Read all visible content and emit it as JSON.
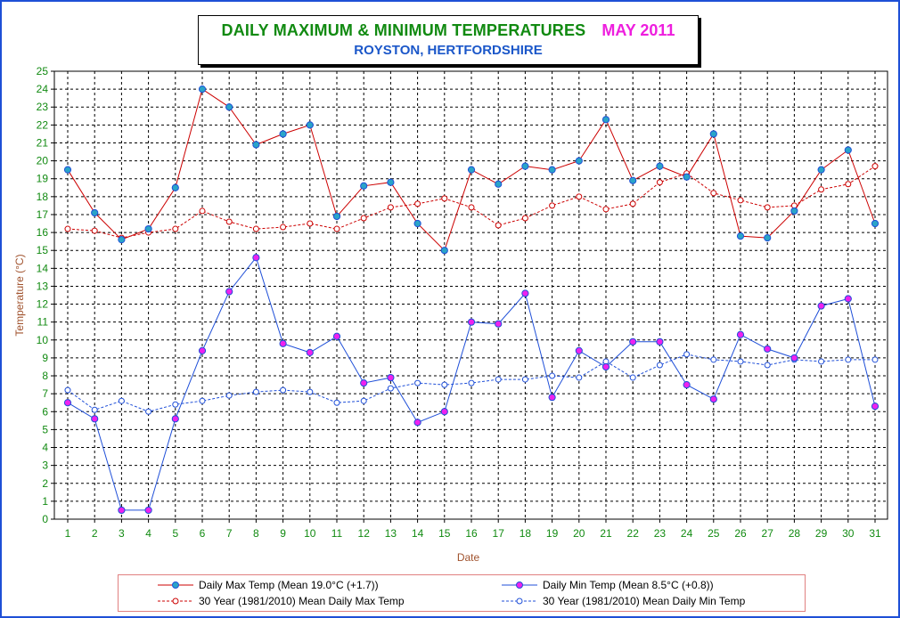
{
  "title": {
    "main": "DAILY MAXIMUM &  MINIMUM  TEMPERATURES",
    "month": "MAY 2011",
    "subtitle": "ROYSTON, HERTFORDSHIRE"
  },
  "colors": {
    "frame": "#1e4fd6",
    "title_main": "#118a11",
    "title_month": "#ee1ede",
    "subtitle": "#1b57c9",
    "axis_label": "#a0522d",
    "max_line": "#cc0000",
    "min_line": "#1f4fd8",
    "max_marker_fill": "#2aa4c8",
    "min_marker_fill": "#ee22ee",
    "mean_max_line": "#cc0000",
    "mean_min_line": "#1f4fd8"
  },
  "chart_data": {
    "type": "line",
    "xlabel": "Date",
    "ylabel": "Temperature (°C)",
    "ylim": [
      0,
      25
    ],
    "yticks": [
      0,
      1,
      2,
      3,
      4,
      5,
      6,
      7,
      8,
      9,
      10,
      11,
      12,
      13,
      14,
      15,
      16,
      17,
      18,
      19,
      20,
      21,
      22,
      23,
      24,
      25
    ],
    "x": [
      1,
      2,
      3,
      4,
      5,
      6,
      7,
      8,
      9,
      10,
      11,
      12,
      13,
      14,
      15,
      16,
      17,
      18,
      19,
      20,
      21,
      22,
      23,
      24,
      25,
      26,
      27,
      28,
      29,
      30,
      31
    ],
    "grid": true,
    "legend_position": "bottom",
    "series": [
      {
        "name": "Daily Max Temp (Mean 19.0°C (+1.7))",
        "style": "solid",
        "marker": "filled-circle",
        "values": [
          19.5,
          17.1,
          15.6,
          16.2,
          18.5,
          24.0,
          23.0,
          20.9,
          21.5,
          22.0,
          16.9,
          18.6,
          18.8,
          16.5,
          15.0,
          19.5,
          18.7,
          19.7,
          19.5,
          20.0,
          22.3,
          18.9,
          19.7,
          19.1,
          21.5,
          15.8,
          15.7,
          17.2,
          19.5,
          20.6,
          16.5
        ]
      },
      {
        "name": "Daily Min Temp (Mean 8.5°C (+0.8))",
        "style": "solid",
        "marker": "filled-circle",
        "values": [
          6.5,
          5.6,
          0.5,
          0.5,
          5.6,
          9.4,
          12.7,
          14.6,
          9.8,
          9.3,
          10.2,
          7.6,
          7.9,
          5.4,
          6.0,
          11.0,
          10.9,
          12.6,
          6.8,
          9.4,
          8.5,
          9.9,
          9.9,
          7.5,
          6.7,
          10.3,
          9.5,
          9.0,
          11.9,
          12.3,
          6.3
        ]
      },
      {
        "name": "30 Year (1981/2010) Mean Daily Max Temp",
        "style": "dashed",
        "marker": "open-circle",
        "values": [
          16.2,
          16.1,
          15.7,
          16.0,
          16.2,
          17.2,
          16.6,
          16.2,
          16.3,
          16.5,
          16.2,
          16.8,
          17.4,
          17.6,
          17.9,
          17.4,
          16.4,
          16.8,
          17.5,
          18.0,
          17.3,
          17.6,
          18.8,
          19.3,
          18.2,
          17.8,
          17.4,
          17.5,
          18.4,
          18.7,
          19.7
        ]
      },
      {
        "name": "30 Year (1981/2010) Mean Daily Min Temp",
        "style": "dashed",
        "marker": "open-circle",
        "values": [
          7.2,
          6.1,
          6.6,
          6.0,
          6.4,
          6.6,
          6.9,
          7.1,
          7.2,
          7.1,
          6.5,
          6.6,
          7.3,
          7.6,
          7.5,
          7.6,
          7.8,
          7.8,
          8.0,
          7.9,
          8.8,
          7.9,
          8.6,
          9.2,
          8.9,
          8.8,
          8.6,
          8.9,
          8.8,
          8.9,
          8.9
        ]
      }
    ]
  }
}
